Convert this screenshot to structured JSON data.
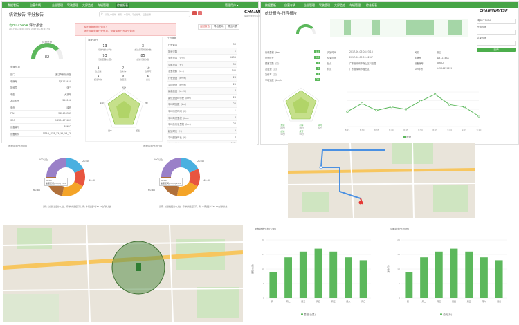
{
  "top_left_panel": {
    "nav": {
      "items": [
        "数据看板",
        "自营车辆",
        "企业管理",
        "驾驶管理",
        "大屏监控",
        "车辆管理",
        "综合报表"
      ]
    },
    "search": {
      "placeholder": "请输入车牌、通讯、车架号、平台编号、设备编号"
    },
    "user": "管理用户 ▾",
    "logo": {
      "brand": "CHAINWAYTSP",
      "tagline": "车辆智能监控平台"
    },
    "breadcrumb": "统计报告",
    "page_title": "统计报告-评分报告",
    "vehicle": {
      "plate": "粤B12345A",
      "title_suffix": "评分报告",
      "date_range": "2017-06-01 00:00 至 2017-06-30 23:59"
    },
    "alert": {
      "line1": "暂无数据和统计信息！",
      "line2": "请先设置车辆行驶信息，设置驾驶行为评分规则"
    },
    "buttons": {
      "return": "返回报告",
      "export_img": "导出图片",
      "export_table": "导出列表"
    },
    "score_label": "评分总分",
    "score_value": "82",
    "info_title": "车辆信息",
    "info_rows": [
      {
        "k": "部门",
        "v": "通达驾驶检测部"
      },
      {
        "k": "车牌号",
        "v": "粤B12345A"
      },
      {
        "k": "驾驶员",
        "v": "张三"
      },
      {
        "k": "车型",
        "v": "大货车"
      },
      {
        "k": "发动机号",
        "v": "245156"
      },
      {
        "k": "车色",
        "v": "绿色"
      },
      {
        "k": "PIN",
        "v": "342456343"
      },
      {
        "k": "SIM",
        "v": "14534479699"
      },
      {
        "k": "设备编号",
        "v": "88652"
      },
      {
        "k": "设备软件",
        "v": "MT10_MT0_V1_15_18_TC"
      }
    ],
    "driving_title": "驾驶评分",
    "stats_grid": [
      {
        "v": "13",
        "l": "行驶时长(小时)"
      },
      {
        "v": "3",
        "l": "超过疲劳驾驶次数"
      },
      {
        "v": "93",
        "l": "行驶里程(公里)"
      },
      {
        "v": "85",
        "l": "超速行驶次数"
      }
    ],
    "behaviors": [
      {
        "v": "4",
        "l": "急加速"
      },
      {
        "v": "7",
        "l": "急刹车"
      },
      {
        "v": "10",
        "l": "急转弯"
      },
      {
        "v": "9",
        "l": "超速时长"
      },
      {
        "v": "4",
        "l": "急变道"
      },
      {
        "v": "6",
        "l": "怠速"
      }
    ],
    "radar_labels": [
      "驾驶",
      "加速",
      "超速",
      "刹车",
      "疲劳"
    ],
    "behavior_title": "行为数据",
    "behavior_rows": [
      {
        "k": "行驶数量",
        "v": "53"
      },
      {
        "k": "驾驶次数",
        "v": "1"
      },
      {
        "k": "里程总量（公里）",
        "v": "4650"
      },
      {
        "k": "油耗总量（升）",
        "v": "55"
      },
      {
        "k": "总里程数（km）",
        "v": "140"
      },
      {
        "k": "行驶速度（km/h）",
        "v": "28"
      },
      {
        "k": "平均速度（km/h）",
        "v": "20"
      },
      {
        "k": "最高速度（km/h）",
        "v": "6"
      },
      {
        "k": "最低速度均行驶（km）",
        "v": "28"
      },
      {
        "k": "平均时速数（km）",
        "v": "20"
      },
      {
        "k": "平均行驶时间（h）",
        "v": "1"
      },
      {
        "k": "平均驾驶里程（km）",
        "v": "4"
      },
      {
        "k": "平均总行驶里程（km）",
        "v": "28"
      },
      {
        "k": "超速时长（h）",
        "v": "2"
      },
      {
        "k": "平均超速时长（h）",
        "v": "5"
      },
      {
        "k": "出勤率排名",
        "v": "92%"
      }
    ],
    "donut_title_1": "速度区间分析(%)",
    "donut_title_2": "速度区间分析(%)",
    "donut_tooltip": {
      "title": "50-60",
      "body": "速度区间(km/h) 27%"
    },
    "donut_labels": [
      "100以上",
      "20-40",
      "40-60",
      "60-80",
      "80-100",
      "0-20"
    ],
    "donut_note": "说明：上图各速度分布占比，行驶时的速度区间，例：车辆速度介于50-60之间的占比"
  },
  "top_right_panel": {
    "nav": [
      "数据看板",
      "自营车辆",
      "企业管理",
      "驾驶管理",
      "大屏监控",
      "车辆管理",
      "综合报表"
    ],
    "page_title": "统计报告-行程报告",
    "vehicle_plate": "粤B12345A",
    "trip_rows_left": [
      {
        "k": "行驶里程（km）",
        "v": "8.5"
      },
      {
        "k": "行驶时长",
        "v": "0.3"
      },
      {
        "k": "超速次数（次）",
        "v": "2"
      },
      {
        "k": "急加速（次）",
        "v": "1"
      },
      {
        "k": "急刹车（次）",
        "v": "3"
      },
      {
        "k": "平均速度（km/h）",
        "v": "22"
      }
    ],
    "trip_rows_mid": [
      {
        "k": "开始时间",
        "v": "2017-06-05 08:23:15"
      },
      {
        "k": "结束时间",
        "v": "2017-06-05 09:02:47"
      },
      {
        "k": "起点",
        "v": "广东省深圳市南山区科技园"
      },
      {
        "k": "终点",
        "v": "广东省深圳市福田区"
      }
    ],
    "trip_rows_right": [
      {
        "k": "司机",
        "v": "张三"
      },
      {
        "k": "车牌号",
        "v": "粤B12345A"
      },
      {
        "k": "设备编号",
        "v": "88652"
      },
      {
        "k": "SIM卡号",
        "v": "14534479699"
      }
    ],
    "side_form": {
      "plate_label": "车牌号",
      "start_label": "开始时间",
      "end_label": "结束时间",
      "query_button": "查询"
    },
    "line_legend": "速度",
    "line_chart_x": [
      "8:25",
      "8:30",
      "8:35",
      "8:40",
      "8:45",
      "8:50",
      "8:55",
      "9:00",
      "9:05",
      "9:10"
    ],
    "line_chart_y": [
      26,
      40,
      28,
      34,
      30,
      44,
      56,
      38,
      34,
      18
    ],
    "radar_scores": [
      {
        "k": "加速",
        "v": "20分"
      },
      {
        "k": "刹车",
        "v": "18分"
      },
      {
        "k": "转弯",
        "v": "22分"
      },
      {
        "k": "超速",
        "v": "16分"
      },
      {
        "k": "疲劳",
        "v": "19分"
      }
    ]
  },
  "bottom_maps": {
    "map_labels": [
      "大冲商务",
      "深圳湾",
      "科技园",
      "高新园",
      "南山区",
      "北环大道"
    ]
  },
  "bottom_charts": {
    "left_title": "里程趋势分析(公里)",
    "right_title": "油耗趋势分析(升)",
    "legend_left": "里程(公里)",
    "legend_right": "油耗(升)",
    "y_label_left": "里程(公里)",
    "y_label_right": "油耗(升)"
  },
  "chart_data": [
    {
      "type": "bar",
      "title": "里程趋势分析(公里)",
      "categories": [
        "周一",
        "周二",
        "周三",
        "周四",
        "周五",
        "周六",
        "周日"
      ],
      "series": [
        {
          "name": "里程(公里)",
          "values": [
            9,
            14,
            16,
            17,
            16,
            14,
            13
          ]
        }
      ],
      "ylim": [
        0,
        20
      ],
      "color": "#5cb85c",
      "ylabel": "里程(公里)"
    },
    {
      "type": "bar",
      "title": "油耗趋势分析(升)",
      "categories": [
        "周一",
        "周二",
        "周三",
        "周四",
        "周五",
        "周六",
        "周日"
      ],
      "series": [
        {
          "name": "油耗(升)",
          "values": [
            9,
            14,
            16,
            17,
            16,
            14,
            13
          ]
        }
      ],
      "ylim": [
        0,
        20
      ],
      "color": "#5cb85c",
      "ylabel": "油耗(升)"
    }
  ],
  "colors": {
    "brand_green": "#47a447",
    "accent_green": "#5cb85c",
    "radar_fill": "#c6e08b",
    "alert_bg": "#fde2e2",
    "alert_text": "#d9534f",
    "map_bg": "#ebe6dc",
    "road": "#f7c65f",
    "route": "#4a90e2"
  }
}
